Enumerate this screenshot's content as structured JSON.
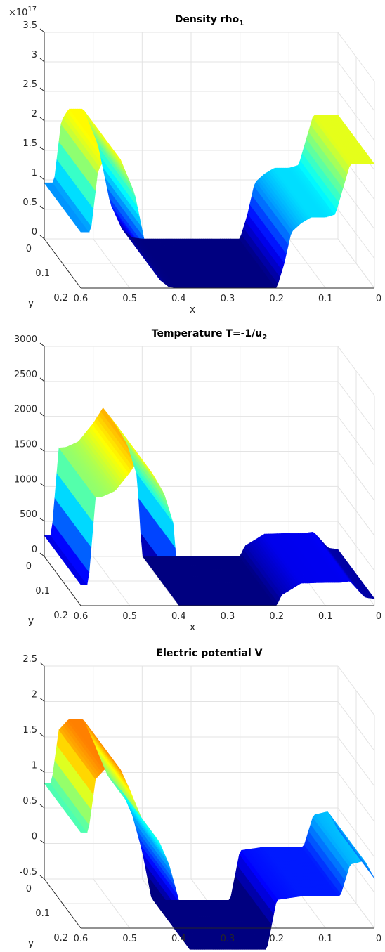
{
  "colors": {
    "colormap": "jet",
    "axis": "#262626",
    "grid": "#e3e3e3",
    "title": "#000000"
  },
  "chart_data": [
    {
      "type": "surface",
      "title": "Density rho",
      "title_subscript": "1",
      "exponent_label": "×10",
      "exponent_power": "17",
      "xlabel": "x",
      "ylabel": "y",
      "zlabel": "",
      "x_ticks": [
        "0.6",
        "0.5",
        "0.4",
        "0.3",
        "0.2",
        "0.1",
        "0"
      ],
      "y_ticks": [
        "0",
        "0.1",
        "0.2"
      ],
      "z_ticks": [
        "0",
        "0.5",
        "1",
        "1.5",
        "2",
        "2.5",
        "3",
        "3.5"
      ],
      "xlim": [
        0.6,
        0
      ],
      "ylim": [
        0,
        0.2
      ],
      "zlim": [
        0,
        3.5
      ],
      "grid": true,
      "profile_x": [
        0.6,
        0.58,
        0.565,
        0.55,
        0.52,
        0.49,
        0.465,
        0.44,
        0.42,
        0.4,
        0.3,
        0.2,
        0.185,
        0.17,
        0.15,
        0.13,
        0.1,
        0.08,
        0.05,
        0.02,
        0.0
      ],
      "profile_z": [
        0.95,
        0.95,
        2.0,
        2.2,
        2.2,
        1.6,
        0.6,
        0.15,
        0.02,
        0.0,
        0.0,
        0.0,
        0.4,
        0.95,
        1.1,
        1.2,
        1.2,
        1.25,
        2.1,
        2.1,
        2.1
      ]
    },
    {
      "type": "surface",
      "title": "Temperature T=-1/u",
      "title_subscript": "2",
      "exponent_label": "",
      "exponent_power": "",
      "xlabel": "x",
      "ylabel": "y",
      "zlabel": "",
      "x_ticks": [
        "0.6",
        "0.5",
        "0.4",
        "0.3",
        "0.2",
        "0.1",
        "0"
      ],
      "y_ticks": [
        "0",
        "0.1",
        "0.2"
      ],
      "z_ticks": [
        "0",
        "500",
        "1000",
        "1500",
        "2000",
        "2500",
        "3000"
      ],
      "xlim": [
        0.6,
        0
      ],
      "ylim": [
        0,
        0.2
      ],
      "zlim": [
        0,
        3000
      ],
      "grid": true,
      "profile_x": [
        0.6,
        0.585,
        0.57,
        0.555,
        0.53,
        0.5,
        0.48,
        0.455,
        0.43,
        0.41,
        0.4,
        0.39,
        0.35,
        0.3,
        0.25,
        0.2,
        0.19,
        0.15,
        0.1,
        0.07,
        0.05,
        0.02,
        0.0
      ],
      "profile_z": [
        300,
        300,
        1550,
        1560,
        1640,
        1900,
        2120,
        1900,
        1600,
        1150,
        0,
        0,
        0,
        0,
        0,
        0,
        150,
        320,
        330,
        330,
        350,
        120,
        100
      ]
    },
    {
      "type": "surface",
      "title": "Electric potential V",
      "title_subscript": "",
      "exponent_label": "",
      "exponent_power": "",
      "xlabel": "",
      "ylabel": "y",
      "zlabel": "",
      "x_ticks": [
        "0.6",
        "0.5",
        "0.4",
        "0.3",
        "0.2",
        "0.1",
        "0"
      ],
      "y_ticks": [
        "0",
        "0.1",
        "0.2"
      ],
      "z_ticks": [
        "-0.5",
        "0",
        "0.5",
        "1",
        "1.5",
        "2",
        "2.5"
      ],
      "xlim": [
        0.6,
        0
      ],
      "ylim": [
        0,
        0.2
      ],
      "zlim": [
        -0.5,
        2.5
      ],
      "grid": true,
      "profile_x": [
        0.6,
        0.585,
        0.57,
        0.55,
        0.52,
        0.5,
        0.47,
        0.44,
        0.42,
        0.4,
        0.38,
        0.3,
        0.22,
        0.2,
        0.15,
        0.1,
        0.07,
        0.05,
        0.02,
        0.0
      ],
      "profile_z": [
        0.85,
        0.85,
        1.6,
        1.75,
        1.75,
        1.45,
        0.95,
        0.72,
        0.4,
        -0.1,
        -0.8,
        -0.8,
        -0.8,
        -0.1,
        -0.05,
        -0.05,
        -0.05,
        0.4,
        0.45,
        0.2
      ]
    }
  ]
}
